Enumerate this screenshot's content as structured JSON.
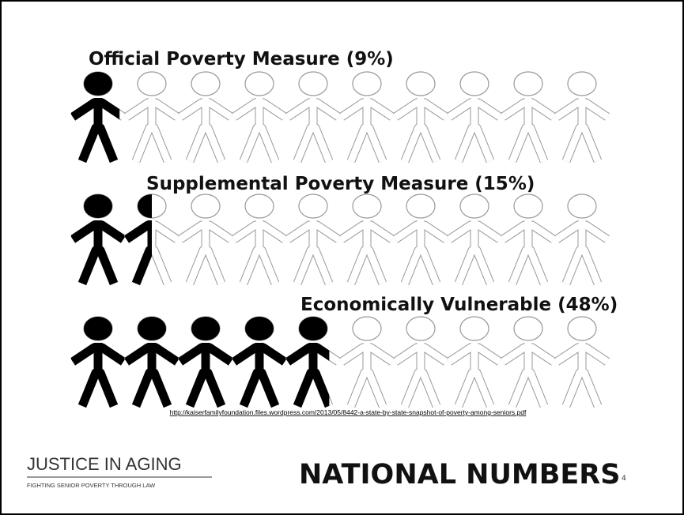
{
  "rows": [
    {
      "label": "Official Poverty Measure",
      "value": 9,
      "value_label": "(9%)"
    },
    {
      "label": "Supplemental Poverty Measure",
      "value": 15,
      "value_label": "(15%)"
    },
    {
      "label": "Economically Vulnerable",
      "value": 48,
      "value_label": "(48%)"
    }
  ],
  "source": "http://kaiserfamilyfoundation.files.wordpress.com/2013/05/8442-a-state-by-state-snapshot-of-poverty-among-seniors.pdf",
  "footer": {
    "logo_title": "JUSTICE IN AGING",
    "logo_subtitle": "FIGHTING SENIOR POVERTY THROUGH LAW",
    "title": "NATIONAL NUMBERS",
    "page": 4
  }
}
